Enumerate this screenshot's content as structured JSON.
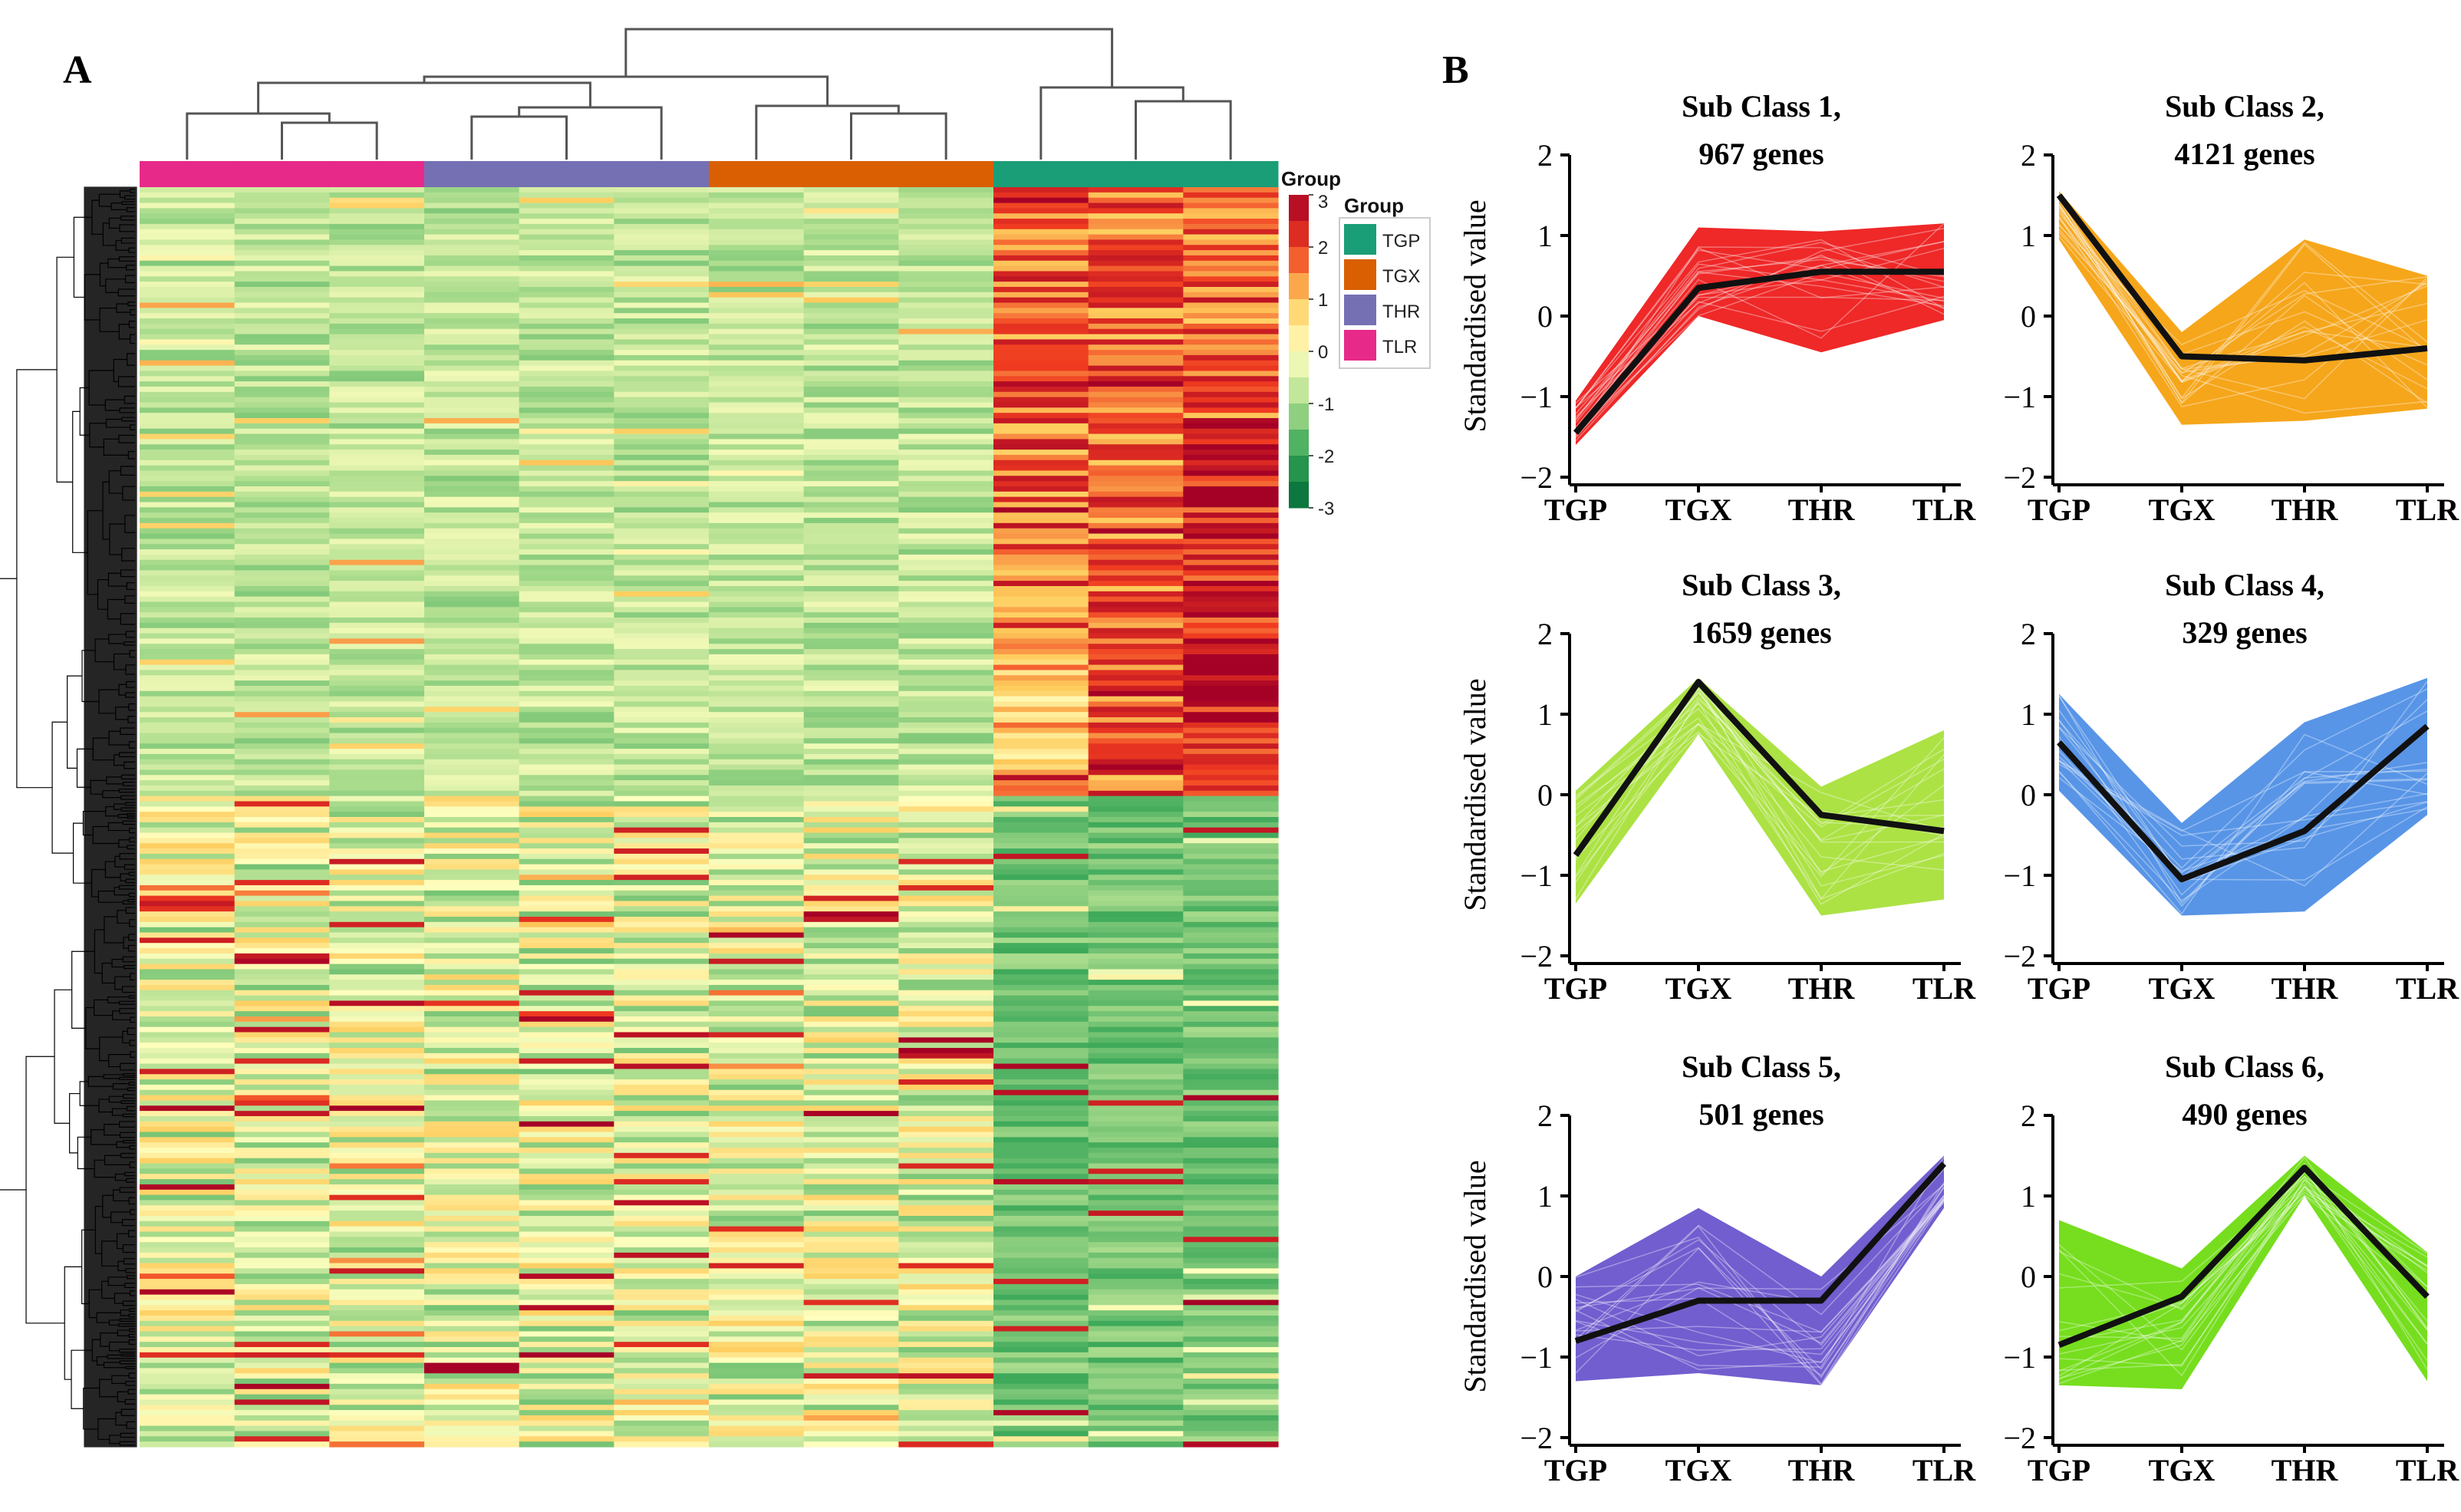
{
  "panel_a": {
    "letter": "A",
    "legend_group_title": "Group",
    "legend_box_title": "Group",
    "color_scale_ticks": [
      "3",
      "2",
      "1",
      "0",
      "-1",
      "-2",
      "-3"
    ],
    "color_scale_values": [
      3,
      2,
      1,
      0,
      -1,
      -2,
      -3
    ],
    "groups": [
      {
        "name": "TGP",
        "color": "#1a9e77"
      },
      {
        "name": "TGX",
        "color": "#d95f02"
      },
      {
        "name": "THR",
        "color": "#7570b3"
      },
      {
        "name": "TLR",
        "color": "#e7298a"
      }
    ],
    "column_groups": [
      "TLR",
      "TLR",
      "TLR",
      "THR",
      "THR",
      "THR",
      "TGX",
      "TGX",
      "TGX",
      "TGP",
      "TGP",
      "TGP"
    ]
  },
  "panel_b": {
    "letter": "B",
    "ylabel": "Standardised value"
  },
  "chart_data": [
    {
      "type": "line",
      "title": "Sub Class 1,",
      "subtitle": "967 genes",
      "categories": [
        "TGP",
        "TGX",
        "THR",
        "TLR"
      ],
      "ylim": [
        -2,
        2
      ],
      "yticks": [
        "2",
        "1",
        "0",
        "−1",
        "−2"
      ],
      "mean": [
        -1.45,
        0.35,
        0.55,
        0.55
      ],
      "band_upper": [
        -1.05,
        1.1,
        1.05,
        1.15
      ],
      "band_lower": [
        -1.6,
        0.0,
        -0.45,
        -0.05
      ],
      "band_color": "#ee1c1c"
    },
    {
      "type": "line",
      "title": "Sub Class 2,",
      "subtitle": "4121 genes",
      "categories": [
        "TGP",
        "TGX",
        "THR",
        "TLR"
      ],
      "ylim": [
        -2,
        2
      ],
      "yticks": [
        "2",
        "1",
        "0",
        "−1",
        "−2"
      ],
      "mean": [
        1.5,
        -0.5,
        -0.55,
        -0.4
      ],
      "band_upper": [
        1.55,
        -0.2,
        0.95,
        0.5
      ],
      "band_lower": [
        0.95,
        -1.35,
        -1.3,
        -1.15
      ],
      "band_color": "#f5a10f"
    },
    {
      "type": "line",
      "title": "Sub Class 3,",
      "subtitle": "1659 genes",
      "categories": [
        "TGP",
        "TGX",
        "THR",
        "TLR"
      ],
      "ylim": [
        -2,
        2
      ],
      "yticks": [
        "2",
        "1",
        "0",
        "−1",
        "−2"
      ],
      "mean": [
        -0.75,
        1.4,
        -0.25,
        -0.45
      ],
      "band_upper": [
        0.05,
        1.45,
        0.1,
        0.8
      ],
      "band_lower": [
        -1.35,
        0.75,
        -1.5,
        -1.3
      ],
      "band_color": "#a8e03a"
    },
    {
      "type": "line",
      "title": "Sub Class 4,",
      "subtitle": "329 genes",
      "categories": [
        "TGP",
        "TGX",
        "THR",
        "TLR"
      ],
      "ylim": [
        -2,
        2
      ],
      "yticks": [
        "2",
        "1",
        "0",
        "−1",
        "−2"
      ],
      "mean": [
        0.65,
        -1.05,
        -0.45,
        0.85
      ],
      "band_upper": [
        1.25,
        -0.35,
        0.9,
        1.45
      ],
      "band_lower": [
        0.05,
        -1.5,
        -1.45,
        -0.25
      ],
      "band_color": "#4f8fe6"
    },
    {
      "type": "line",
      "title": "Sub Class 5,",
      "subtitle": "501 genes",
      "categories": [
        "TGP",
        "TGX",
        "THR",
        "TLR"
      ],
      "ylim": [
        -2,
        2
      ],
      "yticks": [
        "2",
        "1",
        "0",
        "−1",
        "−2"
      ],
      "mean": [
        -0.8,
        -0.3,
        -0.3,
        1.4
      ],
      "band_upper": [
        0.0,
        0.85,
        0.0,
        1.5
      ],
      "band_lower": [
        -1.3,
        -1.2,
        -1.35,
        0.85
      ],
      "band_color": "#6a55cc"
    },
    {
      "type": "line",
      "title": "Sub Class 6,",
      "subtitle": "490 genes",
      "categories": [
        "TGP",
        "TGX",
        "THR",
        "TLR"
      ],
      "ylim": [
        -2,
        2
      ],
      "yticks": [
        "2",
        "1",
        "0",
        "−1",
        "−2"
      ],
      "mean": [
        -0.85,
        -0.25,
        1.35,
        -0.25
      ],
      "band_upper": [
        0.7,
        0.1,
        1.5,
        0.3
      ],
      "band_lower": [
        -1.35,
        -1.4,
        1.0,
        -1.3
      ],
      "band_color": "#6fdc12"
    }
  ]
}
